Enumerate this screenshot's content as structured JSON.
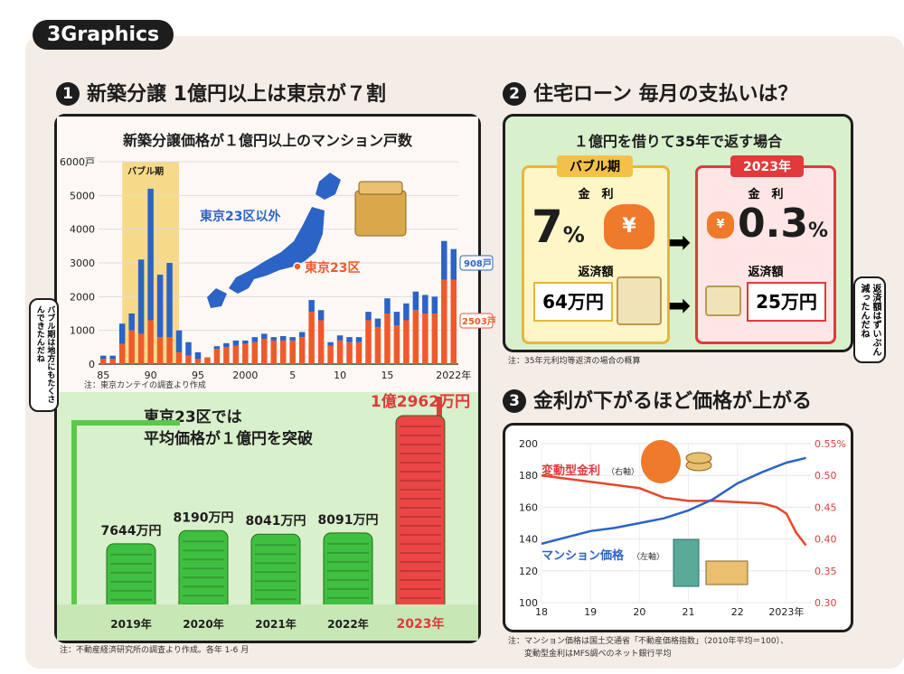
{
  "logo": "3Graphics",
  "sections": {
    "s1": {
      "num": "1",
      "title": "新築分譲 1億円以上は東京が７割"
    },
    "s2": {
      "num": "2",
      "title": "住宅ローン 毎月の支払いは？"
    },
    "s3": {
      "num": "3",
      "title": "金利が下がるほど価格が上がる"
    }
  },
  "chart1": {
    "title": "新築分譲価格が１億円以上のマンション戸数",
    "bubble_label": "バブル期",
    "label_outside": "東京23区以外",
    "label_tokyo": "東京23区",
    "end_outside": "908戸",
    "end_tokyo": "2503戸",
    "note": "注：東京カンテイの調査より作成"
  },
  "towers": {
    "heading_line1": "東京23区では",
    "heading_line2": "平均価格が１億円を突破",
    "note": "注：不動産経済研究所の調査より作成。各年 1-6 月",
    "items": [
      {
        "year": "2019年",
        "price": "7644万円"
      },
      {
        "year": "2020年",
        "price": "8190万円"
      },
      {
        "year": "2021年",
        "price": "8041万円"
      },
      {
        "year": "2022年",
        "price": "8091万円"
      },
      {
        "year": "2023年",
        "price": "1億2962万円"
      }
    ]
  },
  "loan": {
    "title": "１億円を借りて35年で返す場合",
    "bubble": {
      "tag": "バブル期",
      "rate_label": "金　利",
      "rate": "7",
      "rate_unit": "%",
      "pay_label": "返済額",
      "pay": "64万円"
    },
    "now": {
      "tag": "2023年",
      "rate_label": "金　利",
      "rate": "0.3",
      "rate_unit": "%",
      "pay_label": "返済額",
      "pay": "25万円"
    },
    "note": "注：35年元利均等返済の場合の概算"
  },
  "chart3": {
    "label_rate": "変動型金利",
    "label_rate_axis": "（右軸）",
    "label_price": "マンション価格",
    "label_price_axis": "（左軸）",
    "note_line1": "注：マンション価格は国土交通省「不動産価格指数」（2010年平均＝100）、",
    "note_line2": "変動型金利はMFS調べのネット銀行平均"
  },
  "speech": {
    "left": "バブル期は地方にもたくさんできたんだね",
    "right": "返済額はずいぶん減ったんだね"
  },
  "colors": {
    "blue": "#2b63c6",
    "orange": "#ef5a2b",
    "green_bg": "#d9f0cc",
    "bubble_band": "#f7d98a",
    "red": "#e03a3a",
    "tower_green": "#3fbf3f"
  },
  "chart_data": [
    {
      "type": "bar",
      "title": "新築分譲価格が１億円以上のマンション戸数",
      "ylabel": "戸",
      "ylim": [
        0,
        6000
      ],
      "y_ticks": [
        "0",
        "1000",
        "2000",
        "3000",
        "4000",
        "5000",
        "6000"
      ],
      "x_tick_labels": [
        "85",
        "90",
        "95",
        "2000",
        "5",
        "10",
        "15",
        "2022年"
      ],
      "categories": [
        "1985",
        "1986",
        "1987",
        "1988",
        "1989",
        "1990",
        "1991",
        "1992",
        "1993",
        "1994",
        "1995",
        "1996",
        "1997",
        "1998",
        "1999",
        "2000",
        "2001",
        "2002",
        "2003",
        "2004",
        "2005",
        "2006",
        "2007",
        "2008",
        "2009",
        "2010",
        "2011",
        "2012",
        "2013",
        "2014",
        "2015",
        "2016",
        "2017",
        "2018",
        "2019",
        "2020",
        "2021",
        "2022"
      ],
      "series": [
        {
          "name": "東京23区",
          "values": [
            150,
            150,
            600,
            1000,
            900,
            1300,
            800,
            800,
            350,
            250,
            150,
            200,
            450,
            500,
            550,
            600,
            650,
            750,
            700,
            700,
            700,
            800,
            1550,
            1300,
            550,
            700,
            650,
            650,
            1300,
            1100,
            1500,
            1150,
            1300,
            1600,
            1500,
            1500,
            2500,
            2503
          ]
        },
        {
          "name": "東京23区以外",
          "values": [
            100,
            100,
            600,
            500,
            2200,
            3900,
            1850,
            2200,
            650,
            400,
            200,
            0,
            80,
            120,
            150,
            100,
            150,
            150,
            100,
            130,
            100,
            150,
            350,
            300,
            100,
            150,
            150,
            150,
            250,
            250,
            450,
            400,
            500,
            550,
            550,
            500,
            1150,
            908
          ]
        }
      ]
    },
    {
      "type": "bar",
      "title": "平均価格",
      "categories": [
        "2019年",
        "2020年",
        "2021年",
        "2022年",
        "2023年"
      ],
      "values": [
        7644,
        8190,
        8041,
        8091,
        12962
      ],
      "unit": "万円"
    },
    {
      "type": "line",
      "x_tick_labels": [
        "18",
        "19",
        "20",
        "21",
        "22",
        "2023年"
      ],
      "ylim_left": [
        100,
        200
      ],
      "ylim_right": [
        0.3,
        0.55
      ],
      "left_ticks": [
        "100",
        "120",
        "140",
        "160",
        "180",
        "200"
      ],
      "right_ticks": [
        "0.30",
        "0.35",
        "0.40",
        "0.45",
        "0.50",
        "0.55%"
      ],
      "series": [
        {
          "name": "マンション価格",
          "axis": "left",
          "x": [
            2018.0,
            2018.5,
            2019.0,
            2019.5,
            2020.0,
            2020.5,
            2021.0,
            2021.5,
            2022.0,
            2022.5,
            2023.0,
            2023.4
          ],
          "values": [
            137,
            141,
            145,
            147,
            150,
            153,
            158,
            165,
            175,
            182,
            188,
            191
          ]
        },
        {
          "name": "変動型金利",
          "axis": "right",
          "x": [
            2018.0,
            2018.5,
            2019.0,
            2019.5,
            2020.0,
            2020.5,
            2021.0,
            2021.5,
            2022.0,
            2022.5,
            2022.8,
            2023.0,
            2023.2,
            2023.4
          ],
          "values": [
            0.5,
            0.495,
            0.49,
            0.485,
            0.48,
            0.465,
            0.46,
            0.46,
            0.458,
            0.456,
            0.45,
            0.44,
            0.41,
            0.39
          ]
        }
      ]
    }
  ]
}
